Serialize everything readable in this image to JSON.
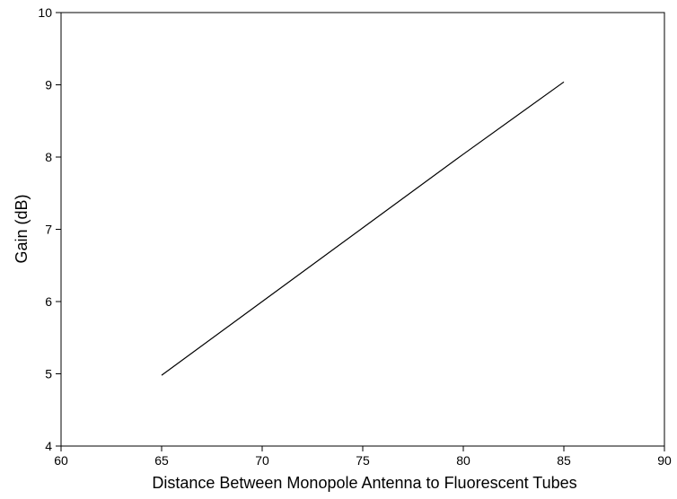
{
  "chart_data": {
    "type": "line",
    "title": "",
    "xlabel": "Distance Between Monopole Antenna to Fluorescent Tubes",
    "ylabel": "Gain (dB)",
    "xlim": [
      60,
      90
    ],
    "ylim": [
      4,
      10
    ],
    "xticks": [
      60,
      65,
      70,
      75,
      80,
      85,
      90
    ],
    "yticks": [
      4,
      5,
      6,
      7,
      8,
      9,
      10
    ],
    "grid": false,
    "legend": "none",
    "series": [
      {
        "x": [
          65,
          70,
          75,
          80,
          85
        ],
        "y": [
          4.98,
          6.0,
          7.02,
          8.04,
          9.04
        ]
      }
    ],
    "colors": {
      "line": "#000000",
      "axes": "#000000",
      "background": "#ffffff"
    }
  }
}
